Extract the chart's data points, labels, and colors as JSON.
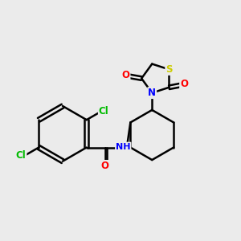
{
  "background_color": "#ebebeb",
  "atom_colors": {
    "N": "#0000ff",
    "O": "#ff0000",
    "S": "#cccc00",
    "Cl": "#00bb00"
  },
  "bond_color": "#000000",
  "bond_width": 1.8,
  "figsize": [
    3.0,
    3.0
  ],
  "dpi": 100
}
